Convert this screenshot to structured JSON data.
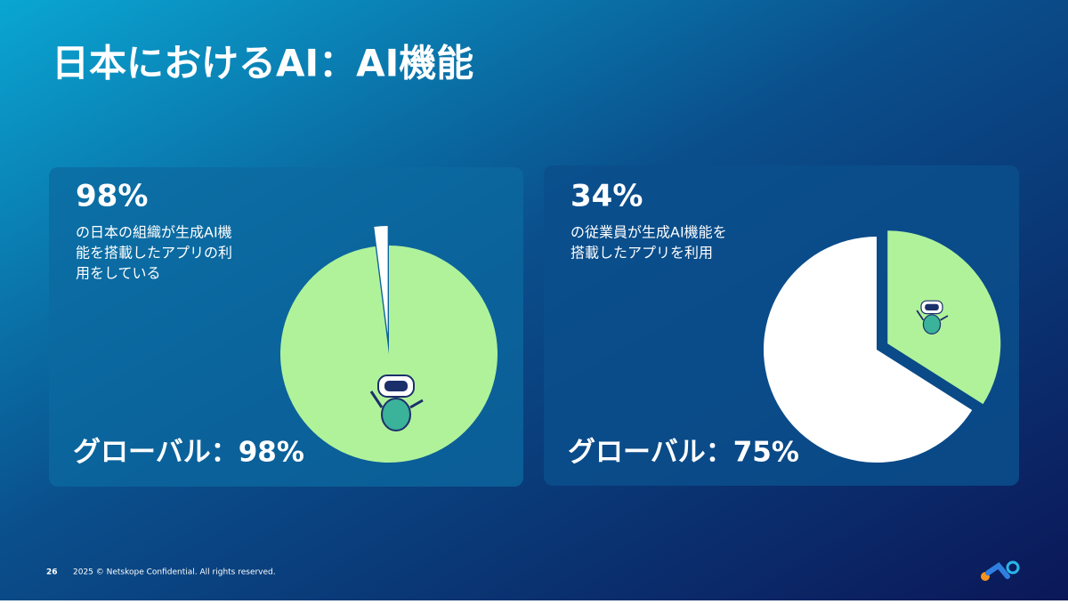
{
  "title": "日本におけるAI：AI機能",
  "chart_data": [
    {
      "type": "pie",
      "values": [
        98,
        2
      ],
      "value_labels": [
        "98%",
        null
      ],
      "colors": [
        "#b0f29a",
        "#ffffff"
      ],
      "exploded_slice": 1,
      "description": [
        "の日本の組織が生成AI機",
        "能を搭載したアプリの利",
        "用をしている"
      ],
      "footer": "グローバル：98%"
    },
    {
      "type": "pie",
      "values": [
        34,
        66
      ],
      "value_labels": [
        "34%",
        null
      ],
      "colors": [
        "#b0f29a",
        "#ffffff"
      ],
      "exploded_slice": 0,
      "description": [
        "の従業員が生成AI機能を",
        "搭載したアプリを利用"
      ],
      "footer": "グローバル：75%"
    }
  ],
  "footer": {
    "page": "26",
    "copyright": "2025 © Netskope Confidential. All rights reserved."
  }
}
